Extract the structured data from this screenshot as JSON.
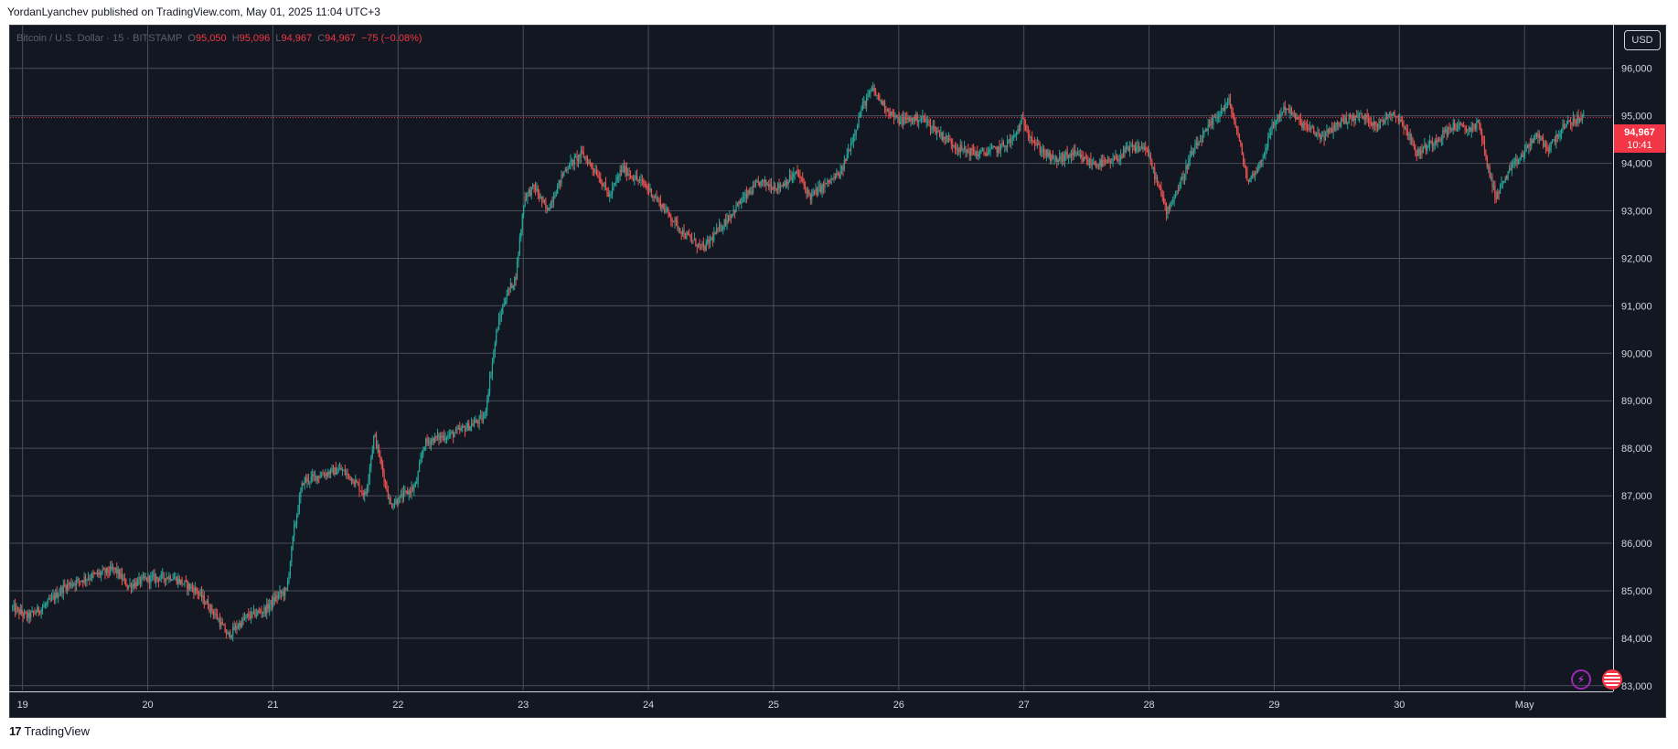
{
  "header": {
    "published_text": "YordanLyanchev published on TradingView.com, May 01, 2025 11:04 UTC+3"
  },
  "legend": {
    "symbol": "Bitcoin / U.S. Dollar · 15 · BITSTAMP",
    "o_label": "O",
    "o_value": "95,050",
    "h_label": "H",
    "h_value": "95,096",
    "l_label": "L",
    "l_value": "94,967",
    "c_label": "C",
    "c_value": "94,967",
    "change": "−75 (−0.08%)"
  },
  "price_axis": {
    "currency": "USD",
    "current_price": "94,967",
    "countdown": "10:41"
  },
  "footer": {
    "logo_text": "TradingView"
  },
  "icons": {
    "bolt": "lightning-icon",
    "flag": "us-flag-icon",
    "logo": "tradingview-logo-icon"
  },
  "colors": {
    "background": "#131722",
    "up": "#26a69a",
    "down": "#ef5350",
    "grid": "#4a4e58",
    "last_price": "#f23645"
  },
  "chart_data": {
    "type": "candlestick",
    "symbol": "Bitcoin / U.S. Dollar",
    "interval": "15",
    "exchange": "BITSTAMP",
    "ylim": [
      82900,
      96900
    ],
    "yticks": [
      83000,
      84000,
      85000,
      86000,
      87000,
      88000,
      89000,
      90000,
      91000,
      92000,
      93000,
      94000,
      95000,
      96000
    ],
    "ytick_labels": [
      "83,000",
      "84,000",
      "85,000",
      "86,000",
      "87,000",
      "88,000",
      "89,000",
      "90,000",
      "91,000",
      "92,000",
      "93,000",
      "94,000",
      "95,000",
      "96,000"
    ],
    "x_ticks": [
      "19",
      "20",
      "21",
      "22",
      "23",
      "24",
      "25",
      "26",
      "27",
      "28",
      "29",
      "30",
      "May"
    ],
    "x_range_days": [
      18.9,
      31.7
    ],
    "last_price": 94967,
    "grid": true,
    "price_path": [
      [
        18.92,
        84650
      ],
      [
        19.05,
        84450
      ],
      [
        19.2,
        84700
      ],
      [
        19.35,
        85100
      ],
      [
        19.55,
        85300
      ],
      [
        19.75,
        85450
      ],
      [
        19.85,
        85100
      ],
      [
        20.0,
        85250
      ],
      [
        20.2,
        85300
      ],
      [
        20.4,
        85000
      ],
      [
        20.55,
        84500
      ],
      [
        20.65,
        84050
      ],
      [
        20.8,
        84450
      ],
      [
        20.95,
        84600
      ],
      [
        21.05,
        84900
      ],
      [
        21.12,
        85000
      ],
      [
        21.18,
        86300
      ],
      [
        21.25,
        87300
      ],
      [
        21.4,
        87450
      ],
      [
        21.55,
        87550
      ],
      [
        21.65,
        87350
      ],
      [
        21.75,
        87000
      ],
      [
        21.82,
        88300
      ],
      [
        21.88,
        87600
      ],
      [
        21.95,
        86800
      ],
      [
        22.05,
        87000
      ],
      [
        22.15,
        87200
      ],
      [
        22.22,
        88100
      ],
      [
        22.3,
        88200
      ],
      [
        22.45,
        88300
      ],
      [
        22.6,
        88500
      ],
      [
        22.7,
        88650
      ],
      [
        22.8,
        90500
      ],
      [
        22.87,
        91200
      ],
      [
        22.95,
        91600
      ],
      [
        23.02,
        93300
      ],
      [
        23.1,
        93500
      ],
      [
        23.2,
        93000
      ],
      [
        23.35,
        93900
      ],
      [
        23.48,
        94200
      ],
      [
        23.6,
        93800
      ],
      [
        23.7,
        93300
      ],
      [
        23.8,
        93900
      ],
      [
        23.9,
        93700
      ],
      [
        24.0,
        93500
      ],
      [
        24.15,
        93000
      ],
      [
        24.3,
        92500
      ],
      [
        24.45,
        92200
      ],
      [
        24.6,
        92700
      ],
      [
        24.75,
        93200
      ],
      [
        24.9,
        93600
      ],
      [
        25.05,
        93500
      ],
      [
        25.2,
        93800
      ],
      [
        25.3,
        93300
      ],
      [
        25.45,
        93600
      ],
      [
        25.55,
        93800
      ],
      [
        25.65,
        94600
      ],
      [
        25.72,
        95200
      ],
      [
        25.8,
        95550
      ],
      [
        25.9,
        95200
      ],
      [
        26.0,
        94900
      ],
      [
        26.2,
        94950
      ],
      [
        26.35,
        94600
      ],
      [
        26.5,
        94300
      ],
      [
        26.65,
        94200
      ],
      [
        26.8,
        94300
      ],
      [
        26.92,
        94500
      ],
      [
        27.0,
        94900
      ],
      [
        27.1,
        94400
      ],
      [
        27.25,
        94050
      ],
      [
        27.4,
        94200
      ],
      [
        27.55,
        94000
      ],
      [
        27.7,
        94000
      ],
      [
        27.85,
        94300
      ],
      [
        27.98,
        94350
      ],
      [
        28.05,
        93800
      ],
      [
        28.15,
        93000
      ],
      [
        28.25,
        93500
      ],
      [
        28.35,
        94200
      ],
      [
        28.45,
        94600
      ],
      [
        28.55,
        95000
      ],
      [
        28.65,
        95300
      ],
      [
        28.72,
        94600
      ],
      [
        28.8,
        93600
      ],
      [
        28.9,
        94000
      ],
      [
        29.0,
        94800
      ],
      [
        29.1,
        95200
      ],
      [
        29.2,
        94900
      ],
      [
        29.3,
        94700
      ],
      [
        29.4,
        94550
      ],
      [
        29.55,
        94900
      ],
      [
        29.7,
        95000
      ],
      [
        29.85,
        94800
      ],
      [
        29.95,
        95100
      ],
      [
        30.05,
        94800
      ],
      [
        30.15,
        94200
      ],
      [
        30.3,
        94500
      ],
      [
        30.45,
        94800
      ],
      [
        30.55,
        94700
      ],
      [
        30.65,
        94850
      ],
      [
        30.7,
        94100
      ],
      [
        30.78,
        93300
      ],
      [
        30.88,
        93800
      ],
      [
        31.0,
        94200
      ],
      [
        31.1,
        94600
      ],
      [
        31.2,
        94300
      ],
      [
        31.3,
        94700
      ],
      [
        31.4,
        94900
      ],
      [
        31.48,
        94967
      ]
    ]
  }
}
